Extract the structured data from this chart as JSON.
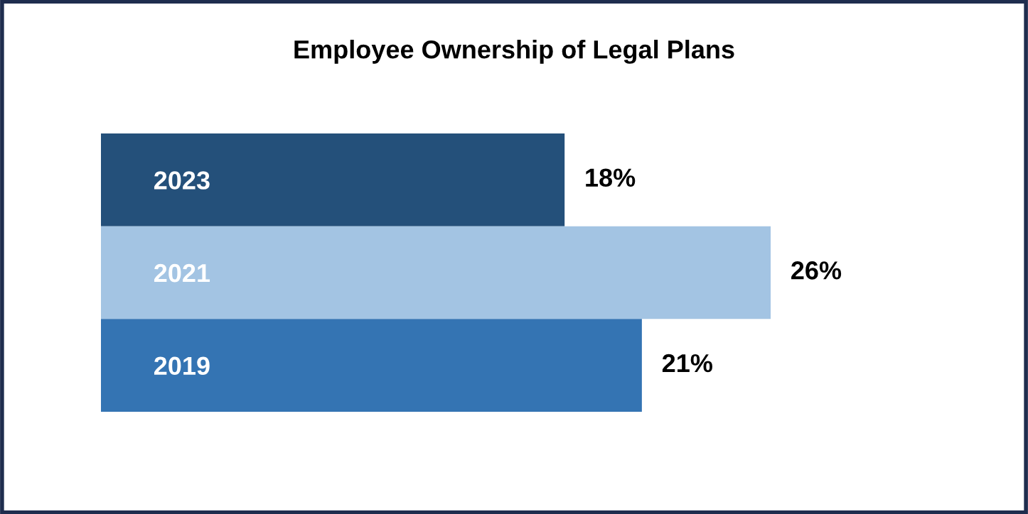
{
  "chart_data": {
    "type": "bar",
    "orientation": "horizontal",
    "title": "Employee Ownership of Legal Plans",
    "categories": [
      "2023",
      "2021",
      "2019"
    ],
    "values": [
      18,
      26,
      21
    ],
    "colors": [
      "#24507a",
      "#a3c4e3",
      "#3474b3"
    ],
    "value_labels": [
      "18%",
      "26%",
      "21%"
    ],
    "grid": false,
    "legend": false
  }
}
